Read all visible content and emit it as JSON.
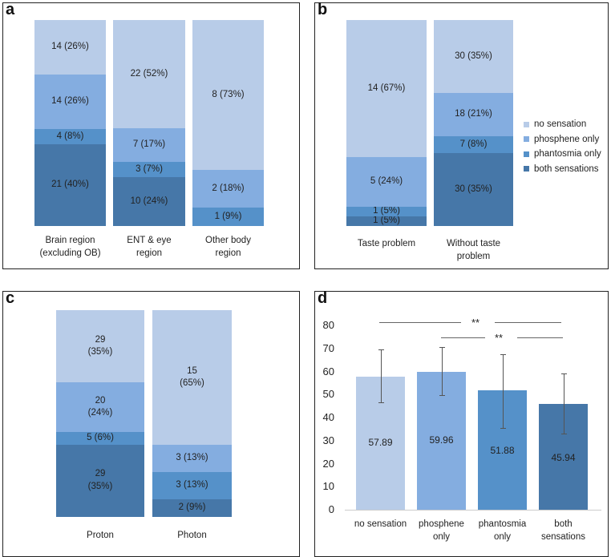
{
  "colors": {
    "no sensation": "#b8cce8",
    "phosphene only": "#84ade0",
    "phantosmia only": "#5591c9",
    "both sensations": "#4677a8"
  },
  "legend": [
    "no sensation",
    "phosphene only",
    "phantosmia only",
    "both sensations"
  ],
  "chart_data": [
    {
      "panel": "a",
      "type": "stacked-bar",
      "stack_order_bottom_to_top": [
        "both sensations",
        "phantosmia only",
        "phosphene only",
        "no sensation"
      ],
      "categories": [
        "Brain region\n(excluding OB)",
        "ENT & eye\nregion",
        "Other body\nregion"
      ],
      "series": [
        {
          "name": "both sensations",
          "values": [
            21,
            10,
            0
          ],
          "labels": [
            "21 (40%)",
            "10 (24%)",
            ""
          ]
        },
        {
          "name": "phantosmia only",
          "values": [
            4,
            3,
            1
          ],
          "labels": [
            "4 (8%)",
            "3 (7%)",
            "1 (9%)"
          ]
        },
        {
          "name": "phosphene only",
          "values": [
            14,
            7,
            2
          ],
          "labels": [
            "14 (26%)",
            "7 (17%)",
            "2 (18%)"
          ]
        },
        {
          "name": "no sensation",
          "values": [
            14,
            22,
            8
          ],
          "labels": [
            "14 (26%)",
            "22 (52%)",
            "8 (73%)"
          ]
        }
      ]
    },
    {
      "panel": "b",
      "type": "stacked-bar",
      "categories": [
        "Taste problem",
        "Without taste\nproblem"
      ],
      "series": [
        {
          "name": "both sensations",
          "values": [
            1,
            30
          ],
          "labels": [
            "1 (5%)",
            "30 (35%)"
          ]
        },
        {
          "name": "phantosmia only",
          "values": [
            1,
            7
          ],
          "labels": [
            "1 (5%)",
            "7 (8%)"
          ]
        },
        {
          "name": "phosphene only",
          "values": [
            5,
            18
          ],
          "labels": [
            "5 (24%)",
            "18 (21%)"
          ]
        },
        {
          "name": "no sensation",
          "values": [
            14,
            30
          ],
          "labels": [
            "14 (67%)",
            "30 (35%)"
          ]
        }
      ],
      "legend_position": "right"
    },
    {
      "panel": "c",
      "type": "stacked-bar",
      "categories": [
        "Proton",
        "Photon"
      ],
      "series": [
        {
          "name": "both sensations",
          "values": [
            29,
            2
          ],
          "labels": [
            "29\n(35%)",
            "2 (9%)"
          ]
        },
        {
          "name": "phantosmia only",
          "values": [
            5,
            3
          ],
          "labels": [
            "5 (6%)",
            "3 (13%)"
          ]
        },
        {
          "name": "phosphene only",
          "values": [
            20,
            3
          ],
          "labels": [
            "20\n(24%)",
            "3 (13%)"
          ]
        },
        {
          "name": "no sensation",
          "values": [
            29,
            15
          ],
          "labels": [
            "29\n(35%)",
            "15\n(65%)"
          ]
        }
      ]
    },
    {
      "panel": "d",
      "type": "bar",
      "categories": [
        "no sensation",
        "phosphene\nonly",
        "phantosmia\nonly",
        "both\nsensations"
      ],
      "values": [
        57.89,
        59.96,
        51.88,
        45.94
      ],
      "value_labels": [
        "57.89",
        "59.96",
        "51.88",
        "45.94"
      ],
      "error_low": [
        46.5,
        49.8,
        35.5,
        33
      ],
      "error_high": [
        69.7,
        70.5,
        67.5,
        59
      ],
      "ylim": [
        0,
        80
      ],
      "yticks": [
        "0",
        "10",
        "20",
        "30",
        "40",
        "50",
        "60",
        "70",
        "80"
      ],
      "significance": [
        {
          "from": "no sensation",
          "to": "both sensations",
          "label": "**"
        },
        {
          "from": "phosphene only",
          "to": "both sensations",
          "label": "**"
        }
      ]
    }
  ],
  "panel_labels": [
    "a",
    "b",
    "c",
    "d"
  ]
}
